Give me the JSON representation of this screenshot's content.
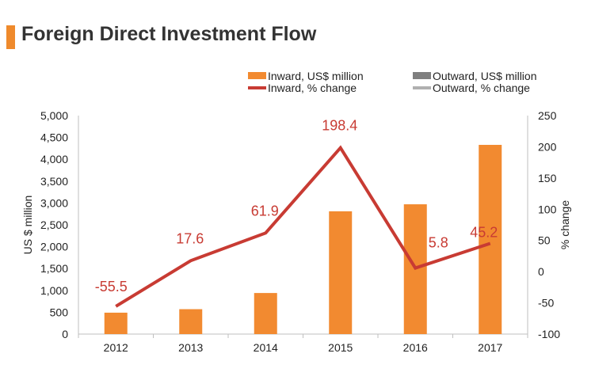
{
  "title": "Foreign Direct Investment Flow",
  "colors": {
    "accent": "#ef8a2c",
    "inward_bar": "#f28a30",
    "inward_line": "#c83b33",
    "outward_bar": "#7f7f7f",
    "outward_line": "#b0b0b0",
    "axis": "#bfbfbf",
    "tick_text": "#222222",
    "label_text": "#c83b33"
  },
  "chart_data": {
    "type": "bar",
    "title": "Foreign Direct Investment Flow",
    "categories": [
      "2012",
      "2013",
      "2014",
      "2015",
      "2016",
      "2017"
    ],
    "series": [
      {
        "name": "Inward, US$ million",
        "type": "bar",
        "axis": "left",
        "values": [
          490,
          570,
          940,
          2810,
          2970,
          4330
        ]
      },
      {
        "name": "Outward, US$ million",
        "type": "bar",
        "axis": "left",
        "values": [
          null,
          null,
          null,
          null,
          null,
          null
        ]
      },
      {
        "name": "Inward, % change",
        "type": "line",
        "axis": "right",
        "values": [
          -55.5,
          17.6,
          61.9,
          198.4,
          5.8,
          45.2
        ]
      },
      {
        "name": "Outward, % change",
        "type": "line",
        "axis": "right",
        "values": [
          null,
          null,
          null,
          null,
          null,
          null
        ]
      }
    ],
    "data_labels": [
      "-55.5",
      "17.6",
      "61.9",
      "198.4",
      "5.8",
      "45.2"
    ],
    "ylabel": "US $ million",
    "ylabel_right": "% change",
    "ylim": [
      0,
      5000
    ],
    "ylim_right": [
      -100,
      250
    ],
    "yticks": [
      "0",
      "500",
      "1,000",
      "1,500",
      "2,000",
      "2,500",
      "3,000",
      "3,500",
      "4,000",
      "4,500",
      "5,000"
    ],
    "yticks_right": [
      "-100",
      "-50",
      "0",
      "50",
      "100",
      "150",
      "200",
      "250"
    ],
    "grid": false,
    "legend_position": "top-right"
  }
}
